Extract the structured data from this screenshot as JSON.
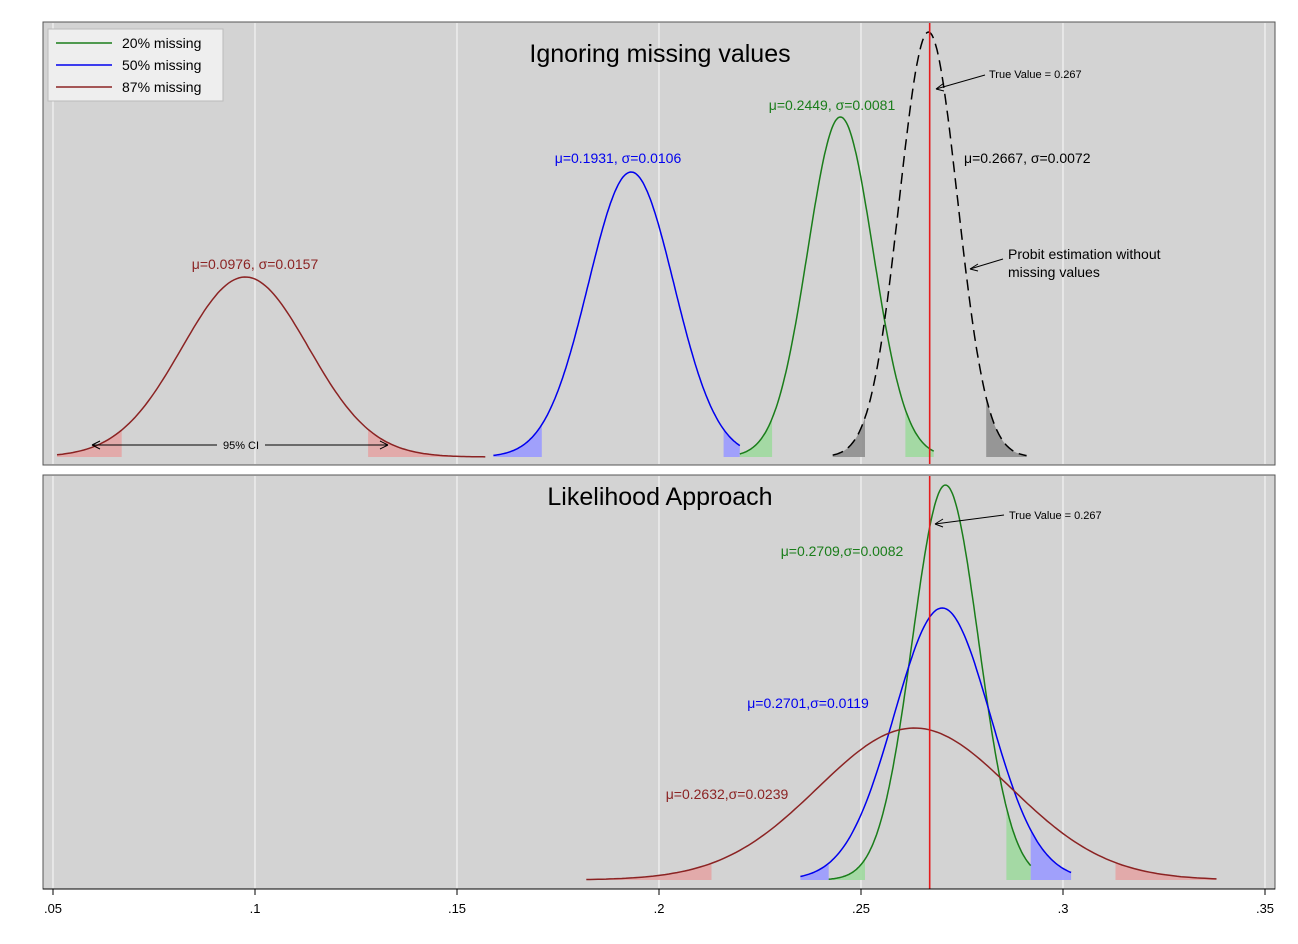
{
  "chart_data": {
    "type": "line",
    "xlim": [
      0.05,
      0.35
    ],
    "x_ticks": [
      {
        "value": 0.05,
        "label": ".05"
      },
      {
        "value": 0.1,
        "label": ".1"
      },
      {
        "value": 0.15,
        "label": ".15"
      },
      {
        "value": 0.2,
        "label": ".2"
      },
      {
        "value": 0.25,
        "label": ".25"
      },
      {
        "value": 0.3,
        "label": ".3"
      },
      {
        "value": 0.35,
        "label": ".35"
      }
    ],
    "grid": "vertical",
    "true_value": 0.267,
    "colors": {
      "20pct": "#1a7d1a",
      "50pct": "#0000ee",
      "87pct": "#8b2323",
      "complete": "#000000",
      "truth": "#e41a1c",
      "panel_bg": "#d3d3d3"
    },
    "legend": {
      "position": "top-left",
      "items": [
        {
          "label": "20% missing",
          "color": "#1a7d1a"
        },
        {
          "label": "50% missing",
          "color": "#0000ee"
        },
        {
          "label": "87% missing",
          "color": "#8b2323"
        }
      ]
    },
    "panels": [
      {
        "title": "Ignoring missing values",
        "true_value_label": "True Value = 0.267",
        "series": [
          {
            "key": "87pct",
            "mu": 0.0976,
            "sigma": 0.0157,
            "label": "μ=0.0976, σ=0.0157",
            "range": [
              0.051,
              0.157
            ],
            "ci": [
              0.067,
              0.128
            ]
          },
          {
            "key": "50pct",
            "mu": 0.1931,
            "sigma": 0.0106,
            "label": "μ=0.1931, σ=0.0106",
            "range": [
              0.159,
              0.22
            ],
            "ci": [
              0.171,
              0.216
            ]
          },
          {
            "key": "20pct",
            "mu": 0.2449,
            "sigma": 0.0081,
            "label": "μ=0.2449, σ=0.0081",
            "range": [
              0.22,
              0.268
            ],
            "ci": [
              0.228,
              0.261
            ]
          },
          {
            "key": "complete",
            "mu": 0.2667,
            "sigma": 0.0072,
            "label": "μ=0.2667, σ=0.0072",
            "range": [
              0.243,
              0.291
            ],
            "ci": [
              0.251,
              0.281
            ],
            "dashed": true
          }
        ],
        "annotations": {
          "ci_label": "95% CI",
          "probit_label_1": "Probit estimation without",
          "probit_label_2": "missing values"
        }
      },
      {
        "title": "Likelihood Approach",
        "true_value_label": "True Value = 0.267",
        "series": [
          {
            "key": "20pct",
            "mu": 0.2709,
            "sigma": 0.0082,
            "label": "μ=0.2709,σ=0.0082",
            "range": [
              0.242,
              0.292
            ],
            "ci": [
              0.251,
              0.286
            ]
          },
          {
            "key": "50pct",
            "mu": 0.2701,
            "sigma": 0.0119,
            "label": "μ=0.2701,σ=0.0119",
            "range": [
              0.235,
              0.302
            ],
            "ci": [
              0.242,
              0.292
            ]
          },
          {
            "key": "87pct",
            "mu": 0.2632,
            "sigma": 0.0239,
            "label": "μ=0.2632,σ=0.0239",
            "range": [
              0.182,
              0.338
            ],
            "ci": [
              0.213,
              0.313
            ]
          }
        ]
      }
    ]
  }
}
